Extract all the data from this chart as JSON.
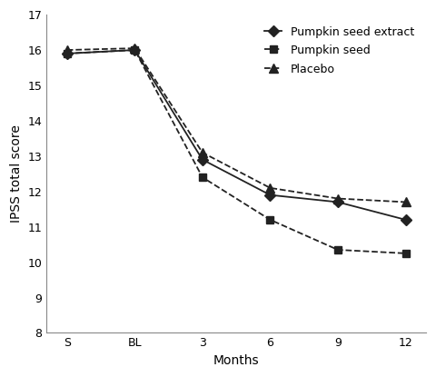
{
  "x_positions": [
    0,
    1,
    2,
    3,
    4,
    5
  ],
  "x_labels": [
    "S",
    "BL",
    "3",
    "6",
    "9",
    "12"
  ],
  "series": [
    {
      "label": "Pumpkin seed extract",
      "values": [
        15.9,
        16.0,
        12.9,
        11.9,
        11.7,
        11.2
      ],
      "linestyle": "solid",
      "marker": "D",
      "color": "#222222",
      "markersize": 6
    },
    {
      "label": "Pumpkin seed",
      "values": [
        15.9,
        16.0,
        12.4,
        11.2,
        10.35,
        10.25
      ],
      "linestyle": "dashed",
      "marker": "s",
      "color": "#222222",
      "markersize": 6
    },
    {
      "label": "Placebo",
      "values": [
        16.0,
        16.05,
        13.1,
        12.1,
        11.8,
        11.7
      ],
      "linestyle": "dashed",
      "marker": "^",
      "color": "#222222",
      "markersize": 7
    }
  ],
  "ylabel": "IPSS total score",
  "xlabel": "Months",
  "ylim": [
    8,
    17
  ],
  "yticks": [
    8,
    9,
    10,
    11,
    12,
    13,
    14,
    15,
    16,
    17
  ],
  "title": "",
  "background_color": "#ffffff",
  "legend_fontsize": 9,
  "axis_fontsize": 10,
  "tick_fontsize": 9
}
